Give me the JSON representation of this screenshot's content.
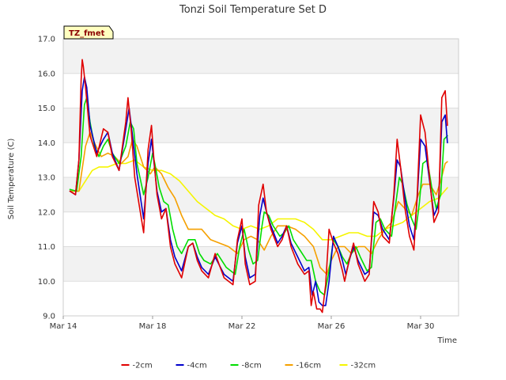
{
  "chart_data": {
    "type": "line",
    "title": "Tonzi Soil Temperature Set D",
    "xlabel": "Time",
    "ylabel": "Soil Temperature (C)",
    "badge": "TZ_fmet",
    "ylim": [
      9.0,
      17.0
    ],
    "xlim": [
      14.0,
      31.7
    ],
    "yticks": [
      9.0,
      10.0,
      11.0,
      12.0,
      13.0,
      14.0,
      15.0,
      16.0,
      17.0
    ],
    "ytick_labels": [
      "9.0",
      "10.0",
      "11.0",
      "12.0",
      "13.0",
      "14.0",
      "15.0",
      "16.0",
      "17.0"
    ],
    "xticks": [
      14,
      18,
      22,
      26,
      30
    ],
    "xtick_labels": [
      "Mar 14",
      "Mar 18",
      "Mar 22",
      "Mar 26",
      "Mar 30"
    ],
    "grid": true,
    "legend_position": "bottom",
    "series": [
      {
        "name": "-2cm",
        "color": "#e00000",
        "x": [
          14.3,
          14.55,
          14.7,
          14.8,
          14.85,
          14.9,
          15.0,
          15.2,
          15.5,
          15.8,
          16.0,
          16.2,
          16.5,
          16.8,
          16.9,
          17.05,
          17.2,
          17.6,
          17.8,
          17.95,
          18.05,
          18.2,
          18.4,
          18.6,
          18.8,
          19.0,
          19.3,
          19.6,
          19.8,
          20.0,
          20.2,
          20.5,
          20.8,
          21.2,
          21.6,
          21.8,
          22.0,
          22.15,
          22.35,
          22.6,
          22.75,
          22.95,
          23.1,
          23.3,
          23.6,
          23.8,
          24.0,
          24.2,
          24.5,
          24.8,
          25.0,
          25.1,
          25.2,
          25.35,
          25.5,
          25.6,
          25.75,
          25.9,
          26.1,
          26.3,
          26.5,
          26.6,
          26.8,
          27.0,
          27.2,
          27.5,
          27.7,
          27.9,
          28.1,
          28.3,
          28.6,
          28.8,
          28.95,
          29.1,
          29.3,
          29.5,
          29.7,
          29.85,
          30.0,
          30.2,
          30.4,
          30.6,
          30.8,
          30.95,
          31.1,
          31.2
        ],
        "values": [
          12.6,
          12.5,
          13.5,
          15.8,
          16.4,
          16.2,
          15.6,
          14.2,
          13.6,
          14.4,
          14.3,
          13.6,
          13.2,
          14.6,
          15.3,
          14.3,
          13.0,
          11.4,
          13.8,
          14.5,
          13.6,
          12.5,
          11.8,
          12.1,
          11.0,
          10.5,
          10.1,
          11.0,
          11.1,
          10.6,
          10.3,
          10.1,
          10.8,
          10.1,
          9.9,
          11.2,
          11.8,
          10.5,
          9.9,
          10.0,
          12.2,
          12.8,
          12.0,
          11.5,
          11.0,
          11.2,
          11.6,
          11.0,
          10.5,
          10.2,
          10.3,
          9.3,
          9.7,
          9.2,
          9.2,
          9.1,
          9.9,
          11.5,
          11.1,
          10.8,
          10.3,
          10.0,
          10.6,
          11.1,
          10.5,
          10.0,
          10.2,
          12.3,
          12.0,
          11.3,
          11.1,
          12.5,
          14.1,
          13.3,
          12.1,
          11.3,
          10.9,
          12.5,
          14.8,
          14.3,
          13.0,
          11.7,
          12.0,
          15.3,
          15.5,
          14.5
        ]
      },
      {
        "name": "-4cm",
        "color": "#0000cc",
        "x": [
          14.3,
          14.55,
          14.7,
          14.85,
          14.95,
          15.05,
          15.2,
          15.5,
          15.8,
          16.0,
          16.2,
          16.5,
          16.8,
          16.95,
          17.1,
          17.3,
          17.6,
          17.8,
          17.95,
          18.05,
          18.2,
          18.4,
          18.6,
          18.8,
          19.0,
          19.3,
          19.6,
          19.8,
          20.0,
          20.2,
          20.5,
          20.8,
          21.2,
          21.6,
          21.8,
          22.0,
          22.15,
          22.35,
          22.6,
          22.8,
          22.95,
          23.1,
          23.3,
          23.6,
          23.8,
          24.0,
          24.2,
          24.5,
          24.8,
          25.0,
          25.15,
          25.3,
          25.45,
          25.6,
          25.75,
          25.9,
          26.1,
          26.3,
          26.5,
          26.65,
          26.85,
          27.0,
          27.2,
          27.5,
          27.7,
          27.9,
          28.1,
          28.3,
          28.6,
          28.8,
          28.95,
          29.1,
          29.3,
          29.5,
          29.7,
          29.85,
          30.0,
          30.2,
          30.4,
          30.6,
          30.8,
          30.95,
          31.1,
          31.2
        ],
        "values": [
          12.6,
          12.5,
          13.5,
          15.5,
          15.9,
          15.6,
          14.5,
          13.7,
          14.1,
          14.3,
          13.7,
          13.2,
          14.4,
          15.0,
          14.2,
          13.1,
          11.8,
          13.4,
          14.1,
          13.5,
          12.6,
          12.0,
          12.1,
          11.2,
          10.7,
          10.3,
          11.0,
          11.1,
          10.7,
          10.4,
          10.2,
          10.7,
          10.2,
          10.0,
          11.1,
          11.6,
          10.7,
          10.1,
          10.2,
          11.9,
          12.4,
          12.0,
          11.6,
          11.1,
          11.3,
          11.6,
          11.1,
          10.7,
          10.3,
          10.4,
          9.6,
          10.0,
          9.4,
          9.3,
          9.3,
          10.0,
          11.3,
          11.0,
          10.6,
          10.2,
          10.7,
          11.0,
          10.6,
          10.2,
          10.3,
          12.0,
          11.9,
          11.5,
          11.2,
          12.4,
          13.5,
          13.3,
          12.4,
          11.6,
          11.2,
          12.4,
          14.1,
          13.9,
          12.9,
          11.9,
          12.2,
          14.6,
          14.8,
          14.0
        ]
      },
      {
        "name": "-8cm",
        "color": "#00dd00",
        "x": [
          14.3,
          14.6,
          14.8,
          14.95,
          15.05,
          15.2,
          15.4,
          15.6,
          15.8,
          16.0,
          16.2,
          16.5,
          16.8,
          17.0,
          17.15,
          17.3,
          17.6,
          17.8,
          18.0,
          18.1,
          18.3,
          18.5,
          18.7,
          18.9,
          19.1,
          19.3,
          19.6,
          19.9,
          20.1,
          20.3,
          20.6,
          20.9,
          21.3,
          21.7,
          21.9,
          22.1,
          22.3,
          22.5,
          22.7,
          22.9,
          23.0,
          23.2,
          23.4,
          23.7,
          23.9,
          24.1,
          24.3,
          24.6,
          24.9,
          25.1,
          25.3,
          25.5,
          25.7,
          25.9,
          26.1,
          26.3,
          26.5,
          26.7,
          26.9,
          27.1,
          27.3,
          27.6,
          27.8,
          28.0,
          28.2,
          28.4,
          28.7,
          28.9,
          29.05,
          29.2,
          29.4,
          29.6,
          29.8,
          29.95,
          30.1,
          30.3,
          30.5,
          30.7,
          30.9,
          31.05,
          31.2
        ],
        "values": [
          12.65,
          12.6,
          13.6,
          15.1,
          15.3,
          14.6,
          13.9,
          13.6,
          13.9,
          14.1,
          13.7,
          13.4,
          13.9,
          14.6,
          14.4,
          13.4,
          12.5,
          13.0,
          13.7,
          13.4,
          12.7,
          12.3,
          12.2,
          11.5,
          11.0,
          10.8,
          11.2,
          11.2,
          10.8,
          10.6,
          10.5,
          10.8,
          10.4,
          10.2,
          11.0,
          11.5,
          10.9,
          10.5,
          10.6,
          11.6,
          12.0,
          11.9,
          11.6,
          11.3,
          11.4,
          11.6,
          11.2,
          10.9,
          10.6,
          10.6,
          10.0,
          9.7,
          9.6,
          10.3,
          11.2,
          11.0,
          10.7,
          10.5,
          10.8,
          11.0,
          10.7,
          10.3,
          10.4,
          11.7,
          11.8,
          11.5,
          11.3,
          12.3,
          13.0,
          12.8,
          12.2,
          11.8,
          11.5,
          12.3,
          13.4,
          13.5,
          12.7,
          12.1,
          12.5,
          14.1,
          14.2
        ]
      },
      {
        "name": "-16cm",
        "color": "#f5a000",
        "x": [
          14.3,
          14.7,
          15.0,
          15.2,
          15.4,
          15.7,
          16.0,
          16.3,
          16.6,
          16.9,
          17.1,
          17.3,
          17.6,
          17.9,
          18.1,
          18.4,
          18.7,
          19.0,
          19.3,
          19.6,
          19.9,
          20.2,
          20.6,
          21.0,
          21.4,
          21.8,
          22.1,
          22.4,
          22.7,
          23.0,
          23.3,
          23.6,
          24.0,
          24.4,
          24.8,
          25.2,
          25.5,
          25.8,
          26.0,
          26.3,
          26.6,
          26.9,
          27.2,
          27.5,
          27.8,
          28.1,
          28.4,
          28.7,
          29.0,
          29.3,
          29.6,
          29.9,
          30.1,
          30.4,
          30.7,
          30.9,
          31.1,
          31.2
        ],
        "values": [
          12.6,
          12.6,
          13.9,
          14.3,
          14.0,
          13.6,
          13.7,
          13.6,
          13.4,
          13.6,
          14.1,
          13.9,
          13.3,
          13.1,
          13.3,
          13.1,
          12.7,
          12.4,
          11.9,
          11.5,
          11.5,
          11.5,
          11.2,
          11.1,
          11.0,
          10.8,
          11.2,
          11.3,
          11.2,
          10.9,
          11.3,
          11.6,
          11.6,
          11.5,
          11.3,
          11.0,
          10.4,
          10.2,
          10.6,
          11.0,
          11.0,
          10.8,
          11.0,
          11.0,
          10.8,
          11.2,
          11.5,
          11.7,
          12.3,
          12.1,
          11.9,
          12.5,
          12.8,
          12.8,
          12.5,
          12.9,
          13.4,
          13.45
        ]
      },
      {
        "name": "-32cm",
        "color": "#f5f500",
        "x": [
          14.3,
          14.7,
          15.0,
          15.3,
          15.6,
          16.0,
          16.4,
          16.8,
          17.2,
          17.6,
          18.0,
          18.4,
          18.8,
          19.2,
          19.6,
          20.0,
          20.4,
          20.8,
          21.2,
          21.6,
          22.0,
          22.4,
          22.8,
          23.2,
          23.6,
          24.0,
          24.4,
          24.8,
          25.2,
          25.6,
          26.0,
          26.4,
          26.8,
          27.2,
          27.6,
          28.0,
          28.4,
          28.8,
          29.2,
          29.6,
          30.0,
          30.4,
          30.8,
          31.2
        ],
        "values": [
          12.6,
          12.6,
          12.9,
          13.2,
          13.3,
          13.3,
          13.4,
          13.4,
          13.5,
          13.3,
          13.2,
          13.2,
          13.1,
          12.9,
          12.6,
          12.3,
          12.1,
          11.9,
          11.8,
          11.6,
          11.5,
          11.6,
          11.5,
          11.6,
          11.8,
          11.8,
          11.8,
          11.7,
          11.5,
          11.2,
          11.2,
          11.3,
          11.4,
          11.4,
          11.3,
          11.3,
          11.5,
          11.6,
          11.7,
          11.9,
          12.1,
          12.3,
          12.4,
          12.7
        ]
      }
    ]
  }
}
